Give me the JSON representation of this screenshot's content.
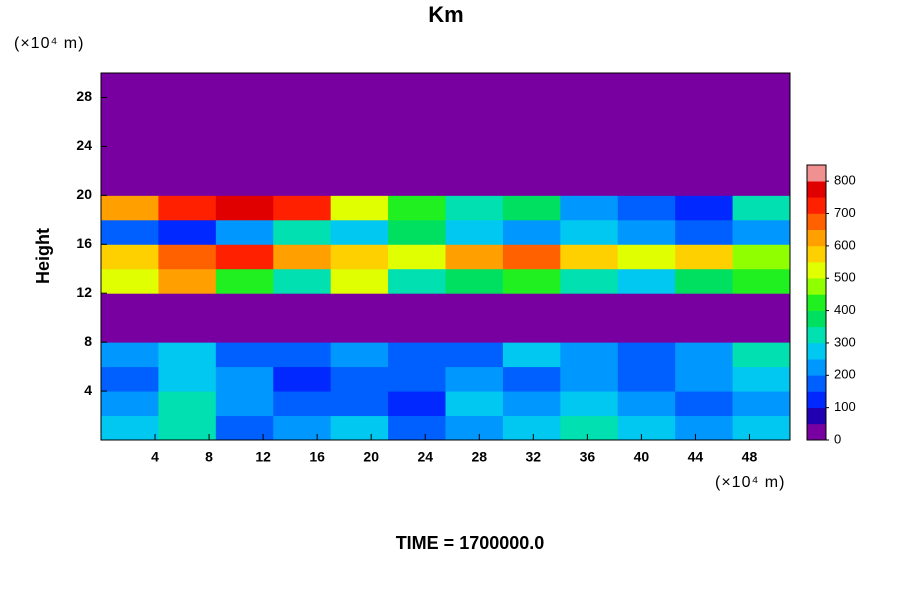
{
  "chart_data": {
    "type": "heatmap",
    "title": "Km",
    "x_unit_label": "(×10⁴ m)",
    "y_unit_label": "(×10⁴ m)",
    "y_label": "Height",
    "annotation": "TIME = 1700000.0",
    "xlim": [
      0,
      51
    ],
    "ylim": [
      0,
      30
    ],
    "xticks": [
      4,
      8,
      12,
      16,
      20,
      24,
      28,
      32,
      36,
      40,
      44,
      48
    ],
    "yticks": [
      4,
      8,
      12,
      16,
      20,
      24,
      28
    ],
    "x_edges": [
      0,
      4.25,
      8.5,
      12.75,
      17,
      21.25,
      25.5,
      29.75,
      34,
      38.25,
      42.5,
      46.75,
      51
    ],
    "y_edges": [
      0,
      2,
      4,
      6,
      8,
      10,
      12,
      14,
      16,
      18,
      20,
      22,
      24,
      26,
      28,
      30
    ],
    "z": [
      [
        250,
        300,
        150,
        200,
        250,
        150,
        200,
        250,
        300,
        250,
        200,
        250
      ],
      [
        200,
        300,
        200,
        150,
        150,
        100,
        250,
        200,
        250,
        200,
        150,
        200
      ],
      [
        150,
        250,
        200,
        100,
        150,
        150,
        200,
        150,
        200,
        150,
        200,
        250
      ],
      [
        200,
        250,
        150,
        150,
        200,
        150,
        150,
        250,
        200,
        150,
        200,
        300
      ],
      [
        0,
        0,
        0,
        0,
        0,
        0,
        0,
        0,
        0,
        0,
        0,
        0
      ],
      [
        0,
        0,
        0,
        0,
        0,
        0,
        0,
        0,
        0,
        0,
        0,
        0
      ],
      [
        500,
        600,
        400,
        300,
        500,
        300,
        350,
        400,
        300,
        250,
        350,
        400
      ],
      [
        550,
        650,
        700,
        600,
        550,
        500,
        600,
        650,
        550,
        500,
        550,
        450
      ],
      [
        150,
        100,
        200,
        300,
        250,
        350,
        250,
        200,
        250,
        200,
        150,
        200
      ],
      [
        600,
        700,
        750,
        700,
        500,
        400,
        300,
        350,
        200,
        150,
        100,
        300
      ],
      [
        0,
        0,
        0,
        0,
        0,
        0,
        0,
        0,
        0,
        0,
        0,
        0
      ],
      [
        0,
        0,
        0,
        0,
        0,
        0,
        0,
        0,
        0,
        0,
        0,
        0
      ],
      [
        0,
        0,
        0,
        0,
        0,
        0,
        0,
        0,
        0,
        0,
        0,
        0
      ],
      [
        0,
        0,
        0,
        0,
        0,
        0,
        0,
        0,
        0,
        0,
        0,
        0
      ],
      [
        0,
        0,
        0,
        0,
        0,
        0,
        0,
        0,
        0,
        0,
        0,
        0
      ]
    ],
    "levels": [
      0,
      50,
      100,
      150,
      200,
      250,
      300,
      350,
      400,
      450,
      500,
      550,
      600,
      650,
      700,
      750,
      800
    ],
    "colors": [
      "#7800a0",
      "#2000b0",
      "#0028ff",
      "#0060ff",
      "#0098ff",
      "#00c8f0",
      "#00e0b0",
      "#00e060",
      "#20f020",
      "#90ff00",
      "#e0ff00",
      "#ffd000",
      "#ffa000",
      "#ff6000",
      "#ff2000",
      "#e00000",
      "#f09090"
    ],
    "cticks": [
      0,
      100,
      200,
      300,
      400,
      500,
      600,
      700,
      800
    ]
  }
}
